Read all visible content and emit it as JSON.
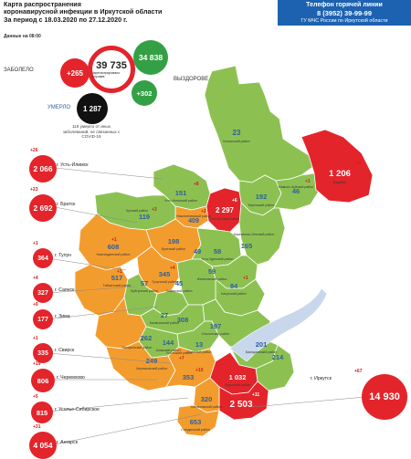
{
  "header": {
    "title_line1": "Карта распространения",
    "title_line2": "коронавирусной инфекции в Иркутской области",
    "title_line3": "За период с 18.03.2020 по 27.12.2020 г.",
    "data_time": "Данные на 08:00"
  },
  "hotline": {
    "title": "Телефон горячей линии",
    "phone": "8 (3952) 39-99-99",
    "org": "ГУ МЧС России по Иркутской области"
  },
  "stats": {
    "total": "39 735",
    "total_caption": "зарегистрировано случаев",
    "infected_label": "ЗАБОЛЕЛО",
    "infected_today": "+265",
    "recovered_label": "ВЫЗДОРОВЕЛО",
    "recovered_total": "34 838",
    "recovered_today": "+302",
    "died_label": "УМЕРЛО",
    "died_total": "1 287",
    "died_note": "119 умерло от иных заболеваний, не связанных с COVID-19"
  },
  "cities": [
    {
      "id": "ust-ilimsk",
      "name": "г. Усть-Илимск",
      "count": "2 066",
      "inc": "+26"
    },
    {
      "id": "bratsk",
      "name": "г. Братск",
      "count": "2 692",
      "inc": "+23"
    },
    {
      "id": "tulun",
      "name": "г. Тулун",
      "count": "364",
      "inc": "+1"
    },
    {
      "id": "sayansk",
      "name": "г. Саянск",
      "count": "327",
      "inc": "+4"
    },
    {
      "id": "zima",
      "name": "г. Зима",
      "count": "177",
      "inc": "+9"
    },
    {
      "id": "svirsk",
      "name": "г. Свирск",
      "count": "335",
      "inc": "+1"
    },
    {
      "id": "cheremkhovo",
      "name": "г. Черемхово",
      "count": "806",
      "inc": "+19"
    },
    {
      "id": "usolye",
      "name": "г. Усолье-Сибирское",
      "count": "815",
      "inc": "+5"
    },
    {
      "id": "angarsk",
      "name": "г. Ангарск",
      "count": "4 054",
      "inc": "+31"
    },
    {
      "id": "irkutsk",
      "name": "г. Иркутск",
      "count": "14 930",
      "inc": "+67"
    }
  ],
  "districts": [
    {
      "id": "katanga",
      "name": "Катангский район",
      "count": "23"
    },
    {
      "id": "bodaibo",
      "name": "Бодайбо",
      "count": "1 206",
      "inc": "+1"
    },
    {
      "id": "mamsko",
      "name": "Мамско-Чуйский район",
      "count": "46",
      "inc": "+1"
    },
    {
      "id": "kirensk",
      "name": "Киренский район",
      "count": "192"
    },
    {
      "id": "ust-kut",
      "name": "Усть-Кутский район",
      "count": "2 297",
      "inc": "+6"
    },
    {
      "id": "ust-ilimsk-r",
      "name": "Усть-Илимский район",
      "count": "151",
      "inc": "+8"
    },
    {
      "id": "chunsky",
      "name": "Чунский район",
      "count": "119",
      "inc": "+3"
    },
    {
      "id": "bratsk-r",
      "name": "Братский район",
      "count": "198"
    },
    {
      "id": "nizhneilimsk",
      "name": "Нижнеилимский район",
      "count": "409",
      "inc": "+2"
    },
    {
      "id": "ust-kut-near",
      "name": "",
      "count": "49"
    },
    {
      "id": "kazachinsk",
      "name": "Казачинско-Ленский район",
      "count": "165"
    },
    {
      "id": "ust-udinsk",
      "name": "Усть-Удинский район",
      "count": "58"
    },
    {
      "id": "zhigalovo",
      "name": "Жигаловский район",
      "count": "59"
    },
    {
      "id": "nizhneudinsk",
      "name": "Нижнеудинский район",
      "count": "608",
      "inc": "+1"
    },
    {
      "id": "taishet",
      "name": "Тайшетский район",
      "count": "517",
      "inc": "+1"
    },
    {
      "id": "tulun-r",
      "name": "Тулунский район",
      "count": "345",
      "inc": "+4"
    },
    {
      "id": "kuytun",
      "name": "Куйтунский район",
      "count": "57"
    },
    {
      "id": "zima-r",
      "name": "Зиминский район",
      "count": "45"
    },
    {
      "id": "kachug",
      "name": "Качугский район",
      "count": "84",
      "inc": "+1"
    },
    {
      "id": "balagansk",
      "name": "Балаганский район",
      "count": "27"
    },
    {
      "id": "nukut",
      "name": "",
      "count": "308"
    },
    {
      "id": "olkhon",
      "name": "Ольхонский район",
      "count": "197"
    },
    {
      "id": "zalari",
      "name": "Заларинский район",
      "count": "262"
    },
    {
      "id": "alar",
      "name": "Аларский район",
      "count": "144"
    },
    {
      "id": "osa",
      "name": "Осинский район",
      "count": "13"
    },
    {
      "id": "bayandai",
      "name": "Баяндаевский район",
      "count": "201"
    },
    {
      "id": "ekhirit",
      "name": "",
      "count": "214"
    },
    {
      "id": "cheremkhovo-r",
      "name": "Черемховский район",
      "count": "249"
    },
    {
      "id": "bokhan",
      "name": "",
      "count": "353",
      "inc": "+10"
    },
    {
      "id": "irkutsk-r",
      "name": "Иркутский район",
      "count": "1 032"
    },
    {
      "id": "shelekhov",
      "name": "Шелеховский район",
      "count": "320"
    },
    {
      "id": "slyudyanka",
      "name": "Слюдянский район",
      "count": "653"
    },
    {
      "id": "irkutsk-center",
      "name": "",
      "count": "2 503",
      "inc": "+11"
    },
    {
      "id": "usolye-r",
      "name": "Усольский район",
      "count": "+7"
    }
  ]
}
